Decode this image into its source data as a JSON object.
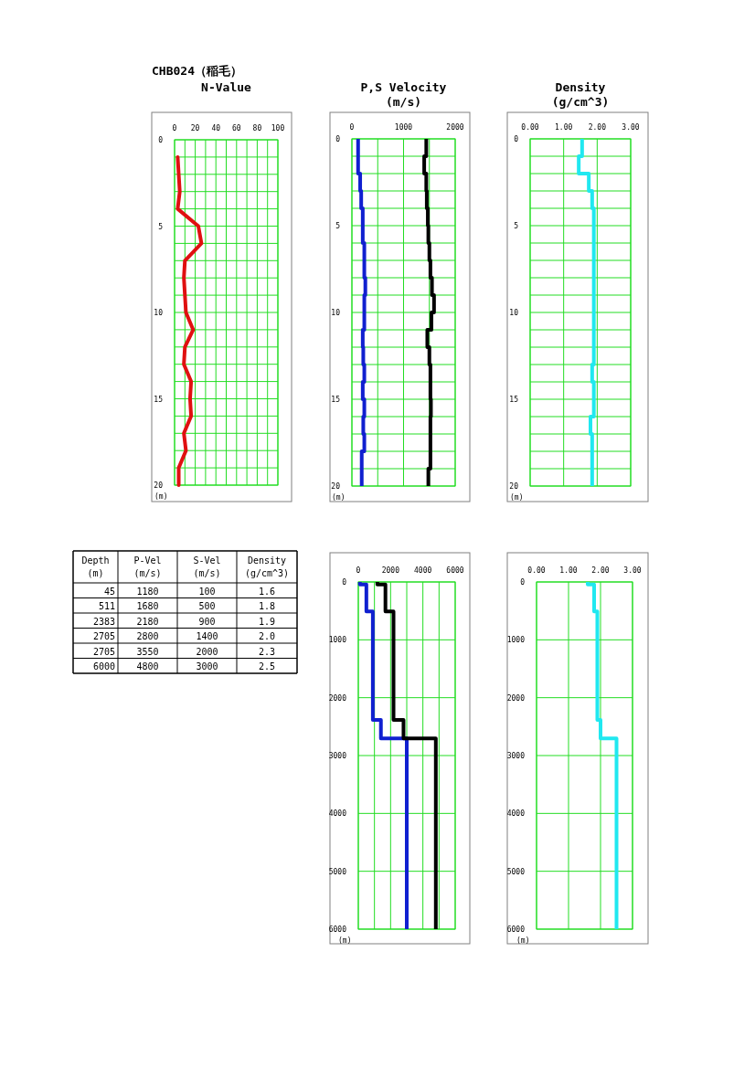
{
  "chart_data": [
    {
      "type": "line",
      "title": "CHB024（稲毛）",
      "subtitle": "N-Value",
      "ylabel": "(m)",
      "orientation": "horizontal",
      "grid": true,
      "x": [
        1,
        2,
        3,
        4,
        5,
        6,
        7,
        8,
        9,
        10,
        11,
        12,
        13,
        14,
        15,
        16,
        17,
        18,
        19,
        20
      ],
      "series": [
        {
          "color": "#e01010",
          "values": [
            3,
            4,
            5,
            3,
            23,
            26,
            10,
            9,
            10,
            11,
            18,
            10,
            9,
            16,
            15,
            16,
            9,
            11,
            4,
            4
          ]
        }
      ],
      "xlim": [
        0,
        100
      ],
      "xticks": [
        0,
        {
          "value": 10,
          "label": null
        },
        20,
        {
          "value": 30,
          "label": null
        },
        40,
        {
          "value": 50,
          "label": null
        },
        60,
        {
          "value": 70,
          "label": null
        },
        80,
        {
          "value": 90,
          "label": null
        },
        100
      ],
      "ylim": [
        20,
        0
      ],
      "yticks": [
        0,
        {
          "value": 1,
          "label": null
        },
        {
          "value": 2,
          "label": null
        },
        {
          "value": 3,
          "label": null
        },
        {
          "value": 4,
          "label": null
        },
        5,
        {
          "value": 6,
          "label": null
        },
        {
          "value": 7,
          "label": null
        },
        {
          "value": 8,
          "label": null
        },
        {
          "value": 9,
          "label": null
        },
        10,
        {
          "value": 11,
          "label": null
        },
        {
          "value": 12,
          "label": null
        },
        {
          "value": 13,
          "label": null
        },
        {
          "value": 14,
          "label": null
        },
        15,
        {
          "value": 16,
          "label": null
        },
        {
          "value": 17,
          "label": null
        },
        {
          "value": 18,
          "label": null
        },
        {
          "value": 19,
          "label": null
        },
        20
      ]
    },
    {
      "type": "step",
      "title": "P,S Velocity",
      "subtitle": "(m/s)",
      "ylabel": "(m)",
      "orientation": "horizontal",
      "grid": true,
      "x": [
        0,
        1,
        2,
        3,
        4,
        5,
        6,
        7,
        8,
        9,
        10,
        11,
        12,
        13,
        14,
        15,
        16,
        17,
        18,
        19,
        20
      ],
      "series": [
        {
          "color": "#1020d0",
          "values": [
            120,
            120,
            160,
            180,
            210,
            210,
            240,
            240,
            260,
            240,
            240,
            210,
            220,
            240,
            210,
            240,
            220,
            240,
            190,
            190,
            190
          ]
        },
        {
          "color": "#000000",
          "values": [
            1440,
            1400,
            1440,
            1450,
            1470,
            1480,
            1500,
            1520,
            1550,
            1590,
            1540,
            1460,
            1500,
            1520,
            1520,
            1530,
            1520,
            1520,
            1520,
            1480,
            1480
          ]
        }
      ],
      "xlim": [
        0,
        2000
      ],
      "xticks": [
        0,
        {
          "value": 500,
          "label": null
        },
        1000,
        {
          "value": 1500,
          "label": null
        },
        2000
      ],
      "ylim": [
        20,
        0
      ],
      "yticks": [
        0,
        {
          "value": 1,
          "label": null
        },
        {
          "value": 2,
          "label": null
        },
        {
          "value": 3,
          "label": null
        },
        {
          "value": 4,
          "label": null
        },
        5,
        {
          "value": 6,
          "label": null
        },
        {
          "value": 7,
          "label": null
        },
        {
          "value": 8,
          "label": null
        },
        {
          "value": 9,
          "label": null
        },
        10,
        {
          "value": 11,
          "label": null
        },
        {
          "value": 12,
          "label": null
        },
        {
          "value": 13,
          "label": null
        },
        {
          "value": 14,
          "label": null
        },
        15,
        {
          "value": 16,
          "label": null
        },
        {
          "value": 17,
          "label": null
        },
        {
          "value": 18,
          "label": null
        },
        {
          "value": 19,
          "label": null
        },
        20
      ]
    },
    {
      "type": "step",
      "title": "Density",
      "subtitle": "(g/cm^3)",
      "ylabel": "(m)",
      "orientation": "horizontal",
      "grid": true,
      "x": [
        0,
        1,
        2,
        3,
        4,
        5,
        6,
        7,
        8,
        9,
        10,
        11,
        12,
        13,
        14,
        15,
        16,
        17,
        18,
        19,
        20
      ],
      "series": [
        {
          "color": "#20e8f0",
          "values": [
            1.55,
            1.45,
            1.75,
            1.85,
            1.9,
            1.9,
            1.9,
            1.9,
            1.9,
            1.9,
            1.9,
            1.9,
            1.9,
            1.85,
            1.9,
            1.9,
            1.8,
            1.85,
            1.85,
            1.85,
            1.85
          ]
        }
      ],
      "xlim": [
        0,
        3
      ],
      "xticks": [
        {
          "value": 0,
          "label": "0.00"
        },
        {
          "value": 1,
          "label": "1.00"
        },
        {
          "value": 2,
          "label": "2.00"
        },
        {
          "value": 3,
          "label": "3.00"
        }
      ],
      "ylim": [
        20,
        0
      ],
      "yticks": [
        0,
        {
          "value": 1,
          "label": null
        },
        {
          "value": 2,
          "label": null
        },
        {
          "value": 3,
          "label": null
        },
        {
          "value": 4,
          "label": null
        },
        5,
        {
          "value": 6,
          "label": null
        },
        {
          "value": 7,
          "label": null
        },
        {
          "value": 8,
          "label": null
        },
        {
          "value": 9,
          "label": null
        },
        10,
        {
          "value": 11,
          "label": null
        },
        {
          "value": 12,
          "label": null
        },
        {
          "value": 13,
          "label": null
        },
        {
          "value": 14,
          "label": null
        },
        15,
        {
          "value": 16,
          "label": null
        },
        {
          "value": 17,
          "label": null
        },
        {
          "value": 18,
          "label": null
        },
        {
          "value": 19,
          "label": null
        },
        20
      ]
    },
    {
      "type": "other",
      "categories": [
        "Depth\n(m)",
        "P-Vel\n(m/s)",
        "S-Vel\n(m/s)",
        "Density\n(g/cm^3)"
      ],
      "annotations": [
        "45",
        "1180",
        "100",
        "1.6",
        "511",
        "1680",
        "500",
        "1.8",
        "2383",
        "2180",
        "900",
        "1.9",
        "2705",
        "2800",
        "1400",
        "2.0",
        "2705",
        "3550",
        "2000",
        "2.3",
        "6000",
        "4800",
        "3000",
        "2.5"
      ]
    },
    {
      "type": "step",
      "ylabel": "(m)",
      "orientation": "horizontal",
      "grid": true,
      "x": [
        0,
        45,
        511,
        2383,
        2705,
        2705,
        6000
      ],
      "series": [
        {
          "color": "#1020d0",
          "values": [
            100,
            500,
            900,
            1400,
            2000,
            3000,
            3000
          ]
        },
        {
          "color": "#000000",
          "values": [
            1180,
            1680,
            2180,
            2800,
            3550,
            4800,
            4800
          ]
        }
      ],
      "xlim": [
        0,
        6000
      ],
      "xticks": [
        0,
        {
          "value": 1000,
          "label": null
        },
        2000,
        {
          "value": 3000,
          "label": null
        },
        4000,
        {
          "value": 5000,
          "label": null
        },
        6000
      ],
      "ylim": [
        6000,
        0
      ],
      "yticks": [
        0,
        1000,
        2000,
        3000,
        4000,
        5000,
        6000
      ]
    },
    {
      "type": "step",
      "ylabel": "(m)",
      "orientation": "horizontal",
      "grid": true,
      "x": [
        0,
        45,
        511,
        2383,
        2705,
        2705,
        6000
      ],
      "series": [
        {
          "color": "#20e8f0",
          "values": [
            1.6,
            1.8,
            1.9,
            2.0,
            2.3,
            2.5,
            2.5
          ]
        }
      ],
      "xlim": [
        0,
        3
      ],
      "xticks": [
        {
          "value": 0,
          "label": "0.00"
        },
        {
          "value": 1,
          "label": "1.00"
        },
        {
          "value": 2,
          "label": "2.00"
        },
        {
          "value": 3,
          "label": "3.00"
        }
      ],
      "ylim": [
        6000,
        0
      ],
      "yticks": [
        0,
        1000,
        2000,
        3000,
        4000,
        5000,
        6000
      ]
    }
  ]
}
